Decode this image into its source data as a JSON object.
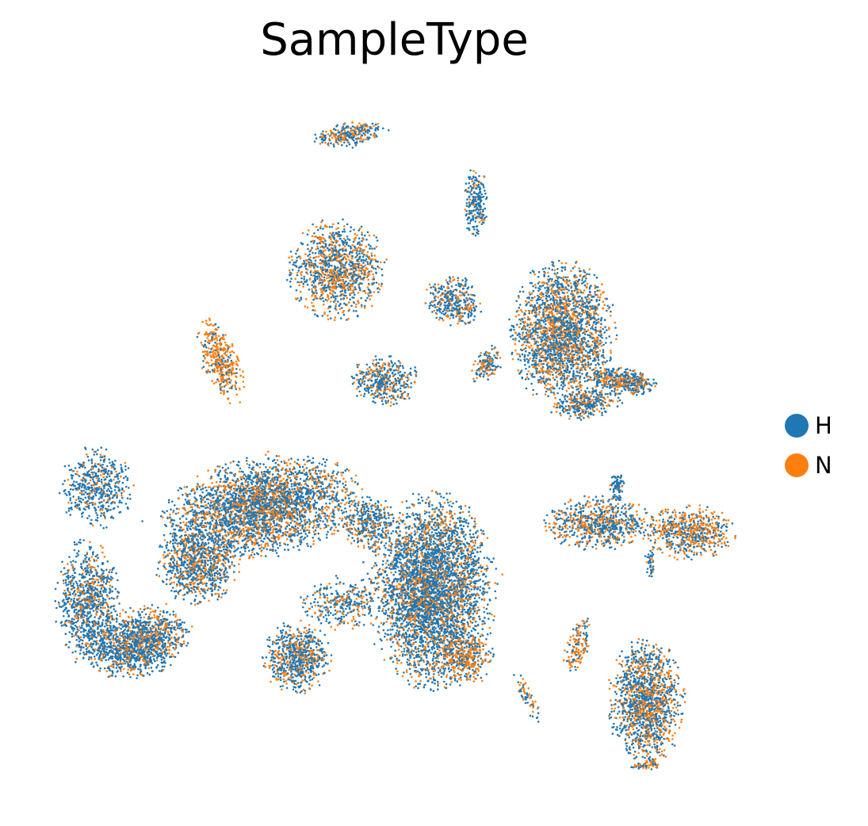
{
  "chart_data": {
    "type": "scatter",
    "title": "SampleType",
    "xlabel": "",
    "ylabel": "",
    "grid": false,
    "axes_visible": false,
    "legend_placement": "right",
    "series": [
      {
        "name": "H",
        "color": "#1f77b4"
      },
      {
        "name": "N",
        "color": "#ff7f0e"
      }
    ]
  }
}
